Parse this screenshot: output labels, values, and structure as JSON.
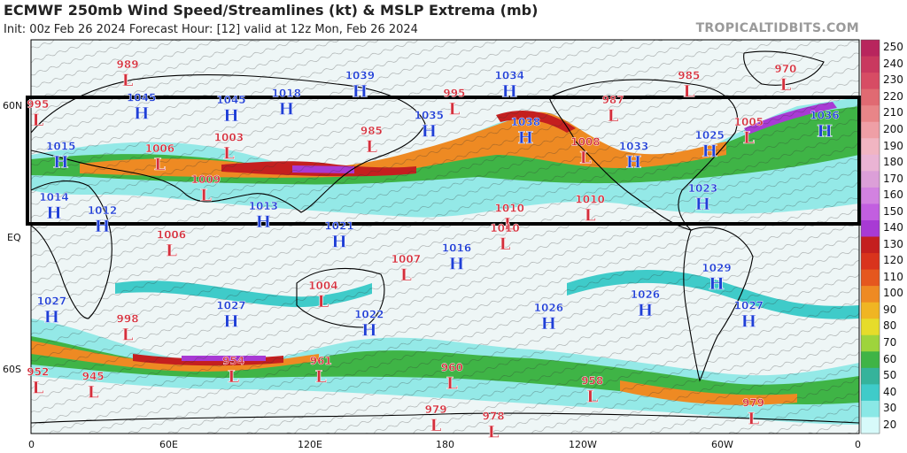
{
  "header": {
    "title": "ECMWF 250mb Wind Speed/Streamlines (kt) & MSLP Extrema (mb)",
    "subtitle": "Init: 00z Feb 26 2024   Forecast Hour: [12]   valid at 12z Mon, Feb 26 2024",
    "source": "TROPICALTIDBITS.COM"
  },
  "map": {
    "lon_labels": [
      "0",
      "60E",
      "120E",
      "180",
      "120W",
      "60W",
      "0"
    ],
    "lat_labels": [
      "60N",
      "EQ",
      "60S"
    ],
    "highlight_box_color": "#000000"
  },
  "colorbar": {
    "labels": [
      "250",
      "240",
      "230",
      "220",
      "210",
      "200",
      "190",
      "180",
      "170",
      "160",
      "150",
      "140",
      "130",
      "120",
      "110",
      "100",
      "90",
      "80",
      "70",
      "60",
      "50",
      "40",
      "30",
      "20"
    ],
    "colors": [
      "#b8255d",
      "#c9395f",
      "#d74c64",
      "#e06a72",
      "#e88588",
      "#ef9fa6",
      "#f1b5c2",
      "#eab4d4",
      "#dc9fd8",
      "#d282e0",
      "#c25fe0",
      "#a83ad4",
      "#c41f1f",
      "#d9331d",
      "#e5571e",
      "#ee8a23",
      "#f0b523",
      "#e6dc2a",
      "#9ed43c",
      "#3fb446",
      "#35b39b",
      "#3fcbc9",
      "#8ae8e6",
      "#d7fafa"
    ]
  },
  "pressure_centers": [
    {
      "type": "L",
      "value": "989",
      "lon": 42,
      "lat": 72
    },
    {
      "type": "L",
      "value": "995",
      "lon": 3,
      "lat": 54
    },
    {
      "type": "H",
      "value": "1045",
      "lon": 48,
      "lat": 57
    },
    {
      "type": "H",
      "value": "1045",
      "lon": 87,
      "lat": 56
    },
    {
      "type": "H",
      "value": "1018",
      "lon": 111,
      "lat": 59
    },
    {
      "type": "H",
      "value": "1039",
      "lon": 143,
      "lat": 67
    },
    {
      "type": "L",
      "value": "995",
      "lon": 184,
      "lat": 59
    },
    {
      "type": "H",
      "value": "1034",
      "lon": 208,
      "lat": 67
    },
    {
      "type": "L",
      "value": "985",
      "lon": 286,
      "lat": 67
    },
    {
      "type": "L",
      "value": "970",
      "lon": 328,
      "lat": 70
    },
    {
      "type": "H",
      "value": "1015",
      "lon": 13,
      "lat": 35
    },
    {
      "type": "L",
      "value": "1006",
      "lon": 56,
      "lat": 34
    },
    {
      "type": "L",
      "value": "1003",
      "lon": 86,
      "lat": 39
    },
    {
      "type": "L",
      "value": "985",
      "lon": 148,
      "lat": 42
    },
    {
      "type": "H",
      "value": "1035",
      "lon": 173,
      "lat": 49
    },
    {
      "type": "H",
      "value": "1038",
      "lon": 215,
      "lat": 46
    },
    {
      "type": "L",
      "value": "987",
      "lon": 253,
      "lat": 56
    },
    {
      "type": "L",
      "value": "1008",
      "lon": 241,
      "lat": 37
    },
    {
      "type": "H",
      "value": "1033",
      "lon": 262,
      "lat": 35
    },
    {
      "type": "H",
      "value": "1025",
      "lon": 295,
      "lat": 40
    },
    {
      "type": "L",
      "value": "1005",
      "lon": 312,
      "lat": 46
    },
    {
      "type": "H",
      "value": "1036",
      "lon": 345,
      "lat": 49
    },
    {
      "type": "L",
      "value": "1009",
      "lon": 76,
      "lat": 20
    },
    {
      "type": "H",
      "value": "1014",
      "lon": 10,
      "lat": 12
    },
    {
      "type": "H",
      "value": "1012",
      "lon": 31,
      "lat": 6
    },
    {
      "type": "H",
      "value": "1013",
      "lon": 101,
      "lat": 8
    },
    {
      "type": "H",
      "value": "1021",
      "lon": 134,
      "lat": -1
    },
    {
      "type": "L",
      "value": "1010",
      "lon": 208,
      "lat": 7
    },
    {
      "type": "L",
      "value": "1010",
      "lon": 243,
      "lat": 11
    },
    {
      "type": "L",
      "value": "1010",
      "lon": 206,
      "lat": -2
    },
    {
      "type": "H",
      "value": "1023",
      "lon": 292,
      "lat": 16
    },
    {
      "type": "L",
      "value": "1006",
      "lon": 61,
      "lat": -5
    },
    {
      "type": "L",
      "value": "1007",
      "lon": 163,
      "lat": -16
    },
    {
      "type": "H",
      "value": "1016",
      "lon": 185,
      "lat": -11
    },
    {
      "type": "L",
      "value": "1004",
      "lon": 127,
      "lat": -28
    },
    {
      "type": "H",
      "value": "1029",
      "lon": 298,
      "lat": -20
    },
    {
      "type": "H",
      "value": "1027",
      "lon": 9,
      "lat": -35
    },
    {
      "type": "L",
      "value": "998",
      "lon": 42,
      "lat": -43
    },
    {
      "type": "H",
      "value": "1027",
      "lon": 87,
      "lat": -37
    },
    {
      "type": "H",
      "value": "1022",
      "lon": 147,
      "lat": -41
    },
    {
      "type": "H",
      "value": "1026",
      "lon": 225,
      "lat": -38
    },
    {
      "type": "H",
      "value": "1026",
      "lon": 267,
      "lat": -32
    },
    {
      "type": "H",
      "value": "1027",
      "lon": 312,
      "lat": -37
    },
    {
      "type": "L",
      "value": "952",
      "lon": 3,
      "lat": -67
    },
    {
      "type": "L",
      "value": "945",
      "lon": 27,
      "lat": -69
    },
    {
      "type": "L",
      "value": "954",
      "lon": 88,
      "lat": -62
    },
    {
      "type": "L",
      "value": "961",
      "lon": 126,
      "lat": -62
    },
    {
      "type": "L",
      "value": "960",
      "lon": 183,
      "lat": -65
    },
    {
      "type": "L",
      "value": "958",
      "lon": 244,
      "lat": -71
    },
    {
      "type": "L",
      "value": "979",
      "lon": 176,
      "lat": -84
    },
    {
      "type": "L",
      "value": "978",
      "lon": 201,
      "lat": -87
    },
    {
      "type": "L",
      "value": "979",
      "lon": 314,
      "lat": -81
    }
  ]
}
